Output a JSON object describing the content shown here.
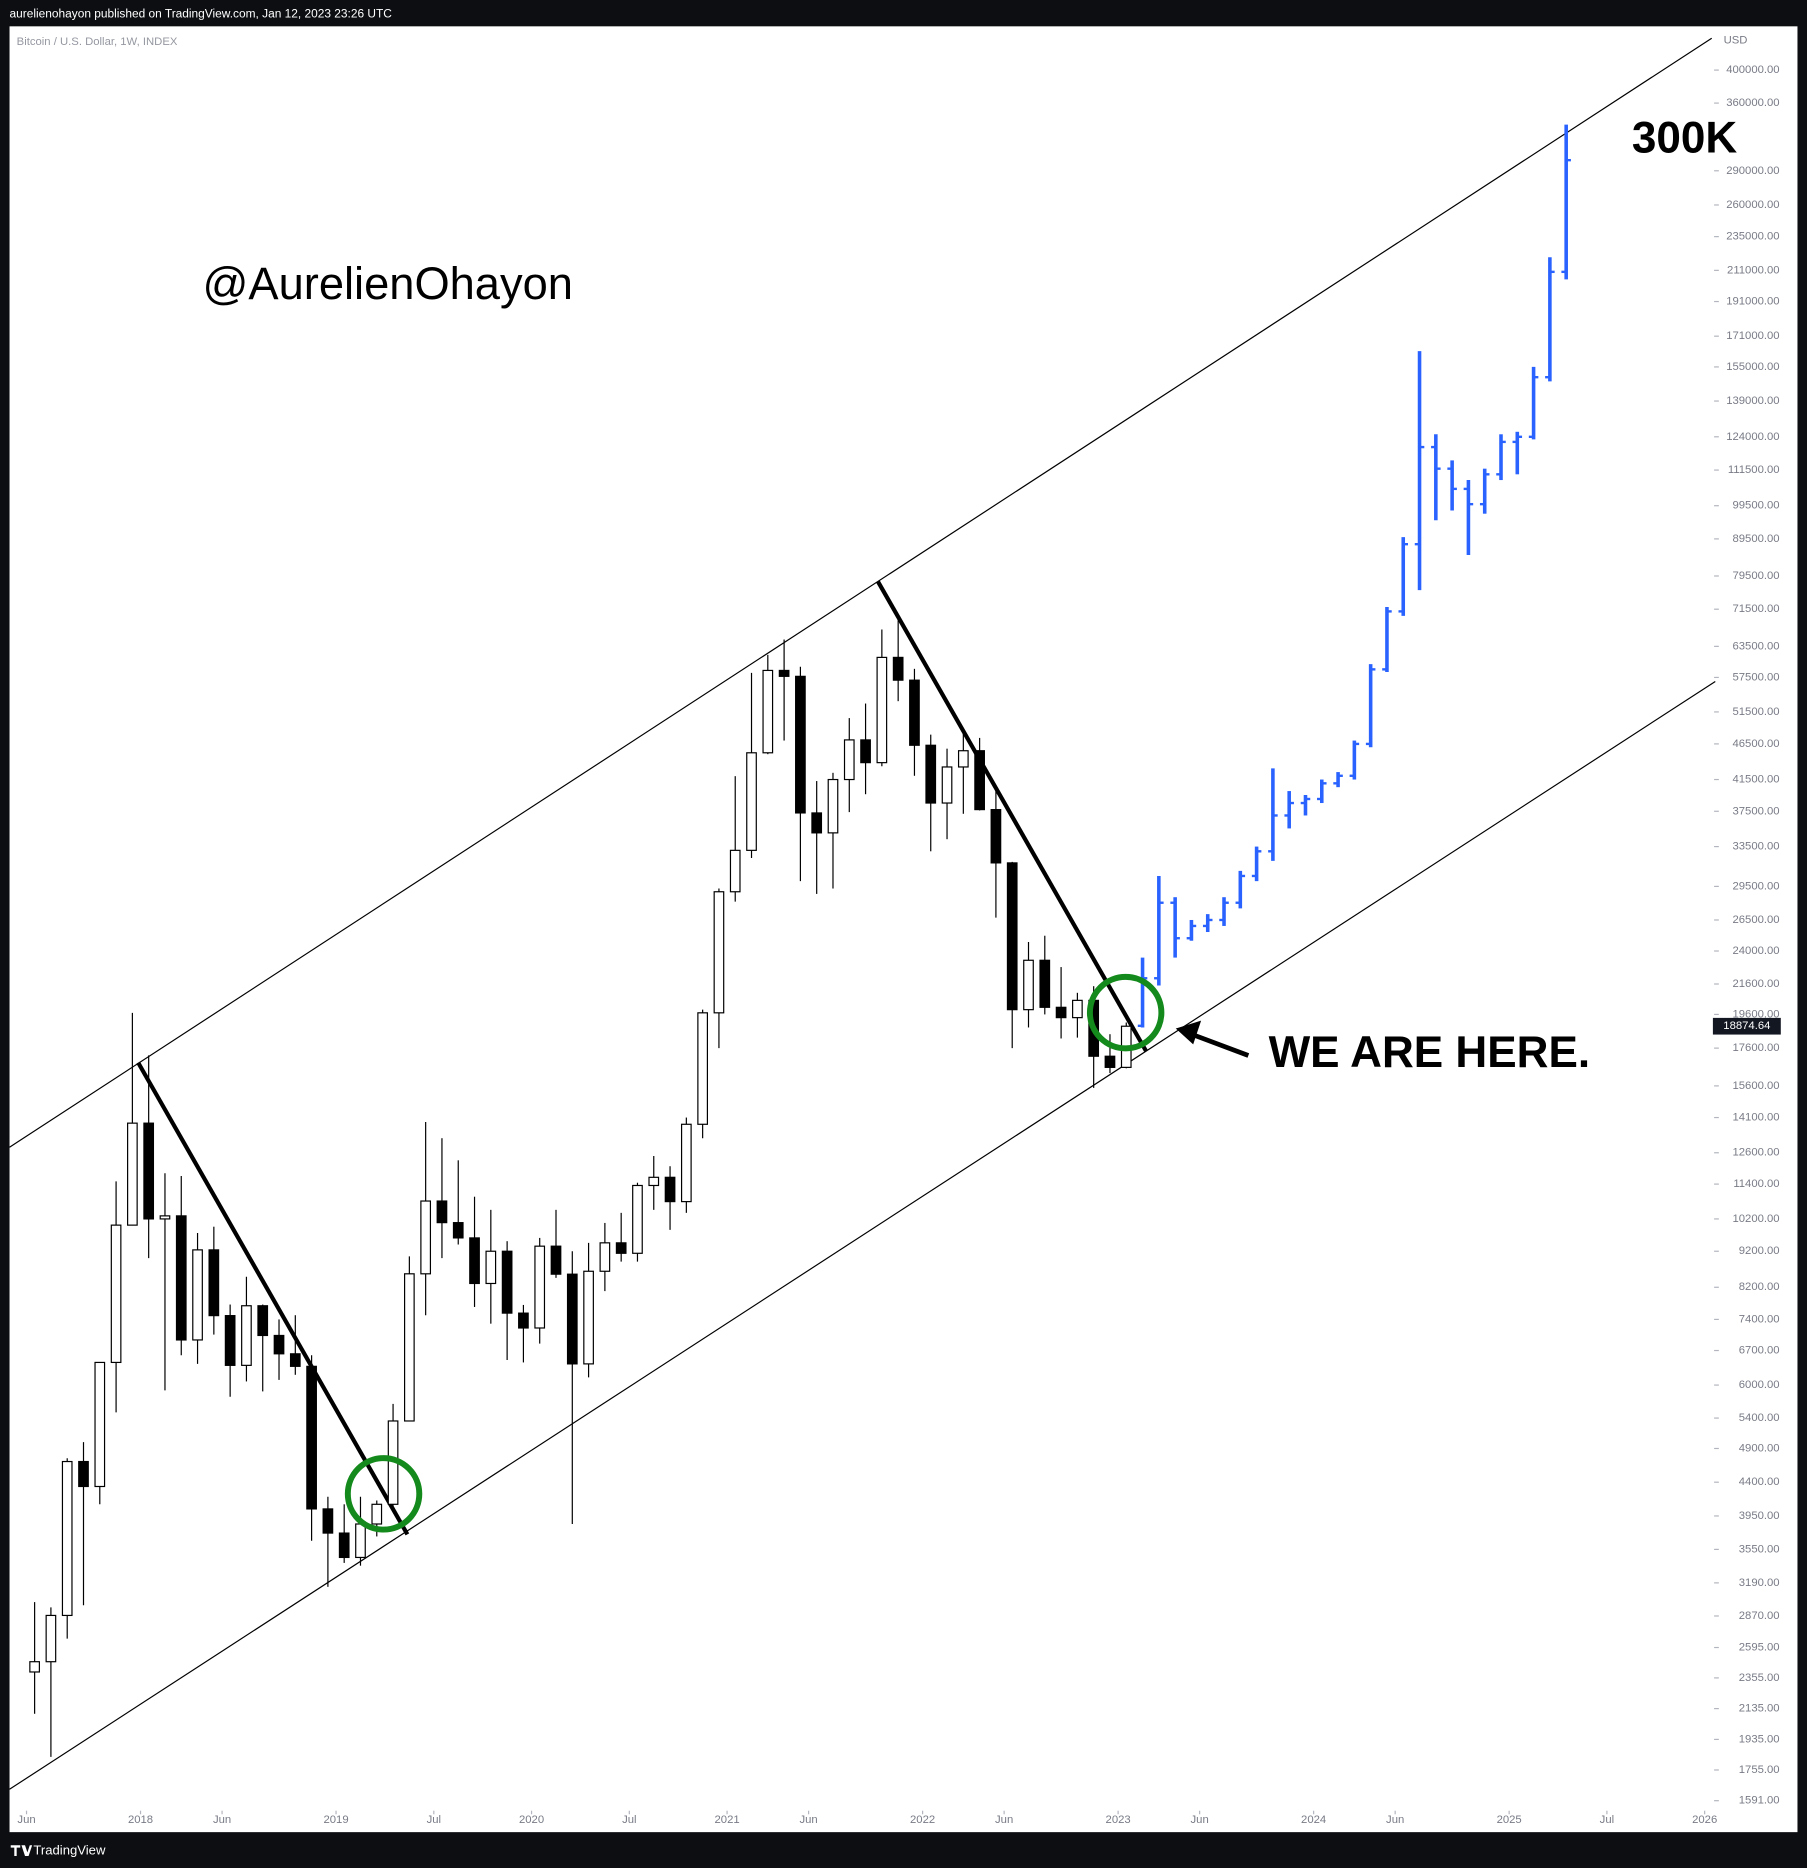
{
  "header": {
    "publisher": "aurelienohayon published on TradingView.com, Jan 12, 2023 23:26 UTC",
    "brand": "TradingView"
  },
  "chart_data": {
    "type": "candlestick",
    "symbol": "Bitcoin / U.S. Dollar, 1W, INDEX",
    "y_axis_label": "USD",
    "log_scale": true,
    "last_price": 18874.64,
    "annotations": {
      "handle": "@AurelienOhayon",
      "target": "300K",
      "current": "WE ARE HERE."
    },
    "xlim": [
      2017.33,
      2026.036
    ],
    "ylim": [
      1439,
      460000
    ],
    "xticks": [
      {
        "value": 2017.417,
        "label": "Jun"
      },
      {
        "value": 2018,
        "label": "2018"
      },
      {
        "value": 2018.417,
        "label": "Jun"
      },
      {
        "value": 2019,
        "label": "2019"
      },
      {
        "value": 2019.5,
        "label": "Jul"
      },
      {
        "value": 2020,
        "label": "2020"
      },
      {
        "value": 2020.5,
        "label": "Jul"
      },
      {
        "value": 2021,
        "label": "2021"
      },
      {
        "value": 2021.417,
        "label": "Jun"
      },
      {
        "value": 2022,
        "label": "2022"
      },
      {
        "value": 2022.417,
        "label": "Jun"
      },
      {
        "value": 2023,
        "label": "2023"
      },
      {
        "value": 2023.417,
        "label": "Jun"
      },
      {
        "value": 2024,
        "label": "2024"
      },
      {
        "value": 2024.417,
        "label": "Jun"
      },
      {
        "value": 2025,
        "label": "2025"
      },
      {
        "value": 2025.5,
        "label": "Jul"
      },
      {
        "value": 2026,
        "label": "2026"
      }
    ],
    "yticks": [
      {
        "value": 400000,
        "label": "400000.00"
      },
      {
        "value": 360000,
        "label": "360000.00"
      },
      {
        "value": 290000,
        "label": "290000.00"
      },
      {
        "value": 260000,
        "label": "260000.00"
      },
      {
        "value": 235000,
        "label": "235000.00"
      },
      {
        "value": 211000,
        "label": "211000.00"
      },
      {
        "value": 191000,
        "label": "191000.00"
      },
      {
        "value": 171000,
        "label": "171000.00"
      },
      {
        "value": 155000,
        "label": "155000.00"
      },
      {
        "value": 139000,
        "label": "139000.00"
      },
      {
        "value": 124000,
        "label": "124000.00"
      },
      {
        "value": 111500,
        "label": "111500.00"
      },
      {
        "value": 99500,
        "label": "99500.00"
      },
      {
        "value": 89500,
        "label": "89500.00"
      },
      {
        "value": 79500,
        "label": "79500.00"
      },
      {
        "value": 71500,
        "label": "71500.00"
      },
      {
        "value": 63500,
        "label": "63500.00"
      },
      {
        "value": 57500,
        "label": "57500.00"
      },
      {
        "value": 51500,
        "label": "51500.00"
      },
      {
        "value": 46500,
        "label": "46500.00"
      },
      {
        "value": 41500,
        "label": "41500.00"
      },
      {
        "value": 37500,
        "label": "37500.00"
      },
      {
        "value": 33500,
        "label": "33500.00"
      },
      {
        "value": 29500,
        "label": "29500.00"
      },
      {
        "value": 26500,
        "label": "26500.00"
      },
      {
        "value": 24000,
        "label": "24000.00"
      },
      {
        "value": 21600,
        "label": "21600.00"
      },
      {
        "value": 19600,
        "label": "19600.00"
      },
      {
        "value": 17600,
        "label": "17600.00"
      },
      {
        "value": 15600,
        "label": "15600.00"
      },
      {
        "value": 14100,
        "label": "14100.00"
      },
      {
        "value": 12600,
        "label": "12600.00"
      },
      {
        "value": 11400,
        "label": "11400.00"
      },
      {
        "value": 10200,
        "label": "10200.00"
      },
      {
        "value": 9200,
        "label": "9200.00"
      },
      {
        "value": 8200,
        "label": "8200.00"
      },
      {
        "value": 7400,
        "label": "7400.00"
      },
      {
        "value": 6700,
        "label": "6700.00"
      },
      {
        "value": 6000,
        "label": "6000.00"
      },
      {
        "value": 5400,
        "label": "5400.00"
      },
      {
        "value": 4900,
        "label": "4900.00"
      },
      {
        "value": 4400,
        "label": "4400.00"
      },
      {
        "value": 3950,
        "label": "3950.00"
      },
      {
        "value": 3550,
        "label": "3550.00"
      },
      {
        "value": 3190,
        "label": "3190.00"
      },
      {
        "value": 2870,
        "label": "2870.00"
      },
      {
        "value": 2595,
        "label": "2595.00"
      },
      {
        "value": 2355,
        "label": "2355.00"
      },
      {
        "value": 2135,
        "label": "2135.00"
      },
      {
        "value": 1935,
        "label": "1935.00"
      },
      {
        "value": 1755,
        "label": "1755.00"
      },
      {
        "value": 1591,
        "label": "1591.00"
      }
    ],
    "series": [
      {
        "style": "candle",
        "color": "#000000",
        "x": [
          "2017-06",
          "2017-07",
          "2017-08",
          "2017-09",
          "2017-10",
          "2017-11",
          "2017-12",
          "2018-01",
          "2018-02",
          "2018-03",
          "2018-04",
          "2018-05",
          "2018-06",
          "2018-07",
          "2018-08",
          "2018-09",
          "2018-10",
          "2018-11",
          "2018-12",
          "2019-01",
          "2019-02",
          "2019-03",
          "2019-04",
          "2019-05",
          "2019-06",
          "2019-07",
          "2019-08",
          "2019-09",
          "2019-10",
          "2019-11",
          "2019-12",
          "2020-01",
          "2020-02",
          "2020-03",
          "2020-04",
          "2020-05",
          "2020-06",
          "2020-07",
          "2020-08",
          "2020-09",
          "2020-10",
          "2020-11",
          "2020-12",
          "2021-01",
          "2021-02",
          "2021-03",
          "2021-04",
          "2021-05",
          "2021-06",
          "2021-07",
          "2021-08",
          "2021-09",
          "2021-10",
          "2021-11",
          "2021-12",
          "2022-01",
          "2022-02",
          "2022-03",
          "2022-04",
          "2022-05",
          "2022-06",
          "2022-07",
          "2022-08",
          "2022-09",
          "2022-10",
          "2022-11",
          "2022-12",
          "2023-01"
        ],
        "open": [
          2400,
          2480,
          2875,
          4700,
          4340,
          6450,
          10000,
          13850,
          10200,
          10300,
          6930,
          9240,
          7490,
          6390,
          7730,
          7030,
          6630,
          6370,
          4040,
          3740,
          3460,
          3850,
          4100,
          5350,
          8560,
          10800,
          10080,
          9600,
          8300,
          9200,
          7550,
          7200,
          9350,
          8550,
          6420,
          8630,
          9450,
          9140,
          11350,
          11650,
          10780,
          13800,
          19700,
          29000,
          33100,
          45200,
          58800,
          57700,
          37300,
          35000,
          41500,
          47100,
          43800,
          61300,
          57000,
          46300,
          38500,
          43200,
          45500,
          37700,
          31800,
          19900,
          23300,
          20050,
          19400,
          20500,
          17150,
          16550
        ],
        "high": [
          3000,
          2950,
          4750,
          5000,
          6450,
          11500,
          19700,
          17200,
          11800,
          11700,
          9750,
          9950,
          7760,
          8480,
          7760,
          7400,
          7500,
          6600,
          4200,
          4100,
          4200,
          4150,
          5650,
          9050,
          13900,
          13200,
          12300,
          10950,
          10500,
          9500,
          7750,
          9600,
          10500,
          9200,
          9450,
          10070,
          10400,
          11450,
          12470,
          12070,
          14100,
          19900,
          29300,
          41950,
          58350,
          61800,
          64900,
          59500,
          41300,
          42400,
          50500,
          52900,
          67000,
          69000,
          59100,
          47900,
          45800,
          48200,
          47400,
          40000,
          31900,
          24700,
          25200,
          22800,
          21000,
          21450,
          18400,
          19100
        ],
        "low": [
          2100,
          1830,
          2670,
          2970,
          4100,
          5500,
          10000,
          9000,
          5900,
          6600,
          6420,
          7050,
          5780,
          6070,
          5880,
          6100,
          6200,
          3650,
          3150,
          3400,
          3370,
          3700,
          4080,
          5350,
          7500,
          9000,
          9400,
          7700,
          7300,
          6500,
          6450,
          6850,
          8450,
          3850,
          6150,
          8100,
          8900,
          8900,
          10500,
          9850,
          10400,
          13200,
          17600,
          28100,
          32300,
          45000,
          47000,
          30000,
          28800,
          29300,
          37400,
          39600,
          43300,
          53300,
          42000,
          33000,
          34300,
          37200,
          37600,
          26700,
          17600,
          18800,
          19600,
          18150,
          18200,
          15500,
          16250,
          16500
        ],
        "close": [
          2480,
          2875,
          4700,
          4340,
          6450,
          10000,
          13850,
          10200,
          10300,
          6930,
          9240,
          7490,
          6390,
          7730,
          7030,
          6630,
          6370,
          4040,
          3740,
          3460,
          3850,
          4100,
          5350,
          8560,
          10800,
          10080,
          9600,
          8300,
          9200,
          7550,
          7200,
          9350,
          8550,
          6420,
          8630,
          9450,
          9140,
          11350,
          11650,
          10780,
          13800,
          19700,
          29000,
          33100,
          45200,
          58800,
          57700,
          37300,
          35000,
          41500,
          47100,
          43800,
          61300,
          57000,
          46300,
          38500,
          43200,
          45500,
          37700,
          31800,
          19900,
          23300,
          20050,
          19400,
          20500,
          17150,
          16550,
          18875
        ]
      },
      {
        "style": "bar",
        "color": "#2962ff",
        "x": [
          "2023-02",
          "2023-03",
          "2023-04",
          "2023-05",
          "2023-06",
          "2023-07",
          "2023-08",
          "2023-09",
          "2023-10",
          "2023-11",
          "2023-12",
          "2024-01",
          "2024-02",
          "2024-03",
          "2024-04",
          "2024-05",
          "2024-06",
          "2024-07",
          "2024-08",
          "2024-09",
          "2024-10",
          "2024-11",
          "2024-12",
          "2025-01",
          "2025-02",
          "2025-03",
          "2025-04"
        ],
        "open": [
          18900,
          22000,
          28000,
          25000,
          26000,
          26500,
          28000,
          30500,
          33000,
          37000,
          38500,
          39000,
          41000,
          42000,
          46500,
          59000,
          71000,
          88000,
          120000,
          112000,
          105000,
          100000,
          110000,
          122000,
          124000,
          150000,
          210000
        ],
        "high": [
          23500,
          30500,
          28500,
          26500,
          27000,
          28500,
          31000,
          33500,
          43000,
          40000,
          39500,
          41500,
          42500,
          47000,
          60000,
          72000,
          90000,
          163000,
          125000,
          115000,
          108000,
          112000,
          125000,
          126000,
          155000,
          220000,
          336000
        ],
        "low": [
          18800,
          21500,
          23500,
          24800,
          25500,
          26000,
          27500,
          30000,
          32000,
          35500,
          37000,
          38500,
          40500,
          41500,
          46000,
          58500,
          70000,
          76000,
          95000,
          98000,
          85000,
          97000,
          108000,
          110000,
          123000,
          148000,
          205000
        ],
        "close": [
          22000,
          28000,
          25000,
          26000,
          26500,
          28000,
          30500,
          33000,
          37000,
          38500,
          39000,
          41000,
          42000,
          46500,
          59000,
          71000,
          88000,
          120000,
          112000,
          105000,
          100000,
          110000,
          122000,
          124000,
          150000,
          210000,
          300000
        ]
      }
    ]
  }
}
